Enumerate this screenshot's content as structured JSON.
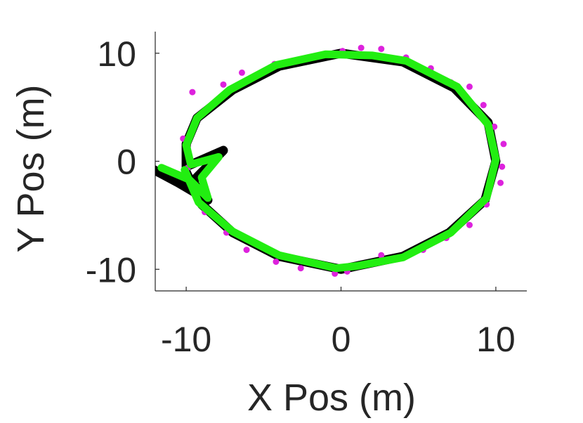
{
  "chart_data": {
    "type": "scatter",
    "title": "",
    "xlabel": "X Pos (m)",
    "ylabel": "Y Pos (m)",
    "xlim": [
      -12,
      12
    ],
    "ylim": [
      -12,
      12
    ],
    "xticks": [
      -10,
      0,
      10
    ],
    "yticks": [
      -10,
      0,
      10
    ],
    "xtick_labels": [
      "-10",
      "0",
      "10"
    ],
    "ytick_labels": [
      "-10",
      "0",
      "10"
    ],
    "grid": false,
    "legend": "none",
    "colors": {
      "truth": "#000000",
      "estimate": "#22ee11",
      "measurements": "#dd22dd",
      "axes": "#262626"
    },
    "series": [
      {
        "kind": "line",
        "color_key": "truth",
        "points": [
          [
            -12.2,
            -0.7
          ],
          [
            -10.5,
            -2.0
          ],
          [
            -8.6,
            -3.6
          ],
          [
            -9.6,
            -1.9
          ],
          [
            -7.6,
            1.0
          ],
          [
            -10.0,
            -0.5
          ],
          [
            -10.0,
            1.6
          ],
          [
            -9.3,
            4.0
          ],
          [
            -7.0,
            6.6
          ],
          [
            -4.0,
            8.8
          ],
          [
            0.0,
            10.0
          ],
          [
            4.0,
            9.2
          ],
          [
            7.3,
            6.8
          ],
          [
            9.5,
            3.6
          ],
          [
            10.0,
            0.0
          ],
          [
            9.3,
            -3.6
          ],
          [
            7.0,
            -6.6
          ],
          [
            4.0,
            -8.8
          ],
          [
            0.0,
            -10.0
          ],
          [
            -4.0,
            -8.8
          ],
          [
            -7.0,
            -6.6
          ],
          [
            -9.0,
            -4.0
          ],
          [
            -10.0,
            -1.0
          ]
        ]
      },
      {
        "kind": "line",
        "color_key": "estimate",
        "points": [
          [
            -11.6,
            -0.6
          ],
          [
            -9.8,
            -1.7
          ],
          [
            -8.6,
            -3.4
          ],
          [
            -9.0,
            -1.5
          ],
          [
            -7.9,
            0.4
          ],
          [
            -9.7,
            -0.3
          ],
          [
            -10.0,
            1.5
          ],
          [
            -9.3,
            4.0
          ],
          [
            -7.2,
            6.6
          ],
          [
            -4.2,
            8.9
          ],
          [
            -1.0,
            9.9
          ],
          [
            2.0,
            9.8
          ],
          [
            4.2,
            9.3
          ],
          [
            7.5,
            6.9
          ],
          [
            9.5,
            3.4
          ],
          [
            10.0,
            0.2
          ],
          [
            9.4,
            -3.4
          ],
          [
            7.1,
            -6.6
          ],
          [
            4.0,
            -8.9
          ],
          [
            1.0,
            -9.7
          ],
          [
            -0.3,
            -9.9
          ],
          [
            -4.0,
            -8.7
          ],
          [
            -7.0,
            -6.5
          ],
          [
            -9.2,
            -3.8
          ],
          [
            -10.1,
            -0.8
          ]
        ]
      },
      {
        "kind": "scatter",
        "color_key": "measurements",
        "points": [
          [
            -9.6,
            6.4
          ],
          [
            -10.2,
            2.1
          ],
          [
            -9.9,
            -0.6
          ],
          [
            -9.0,
            -2.6
          ],
          [
            -8.2,
            5.4
          ],
          [
            -7.6,
            7.1
          ],
          [
            -6.4,
            8.2
          ],
          [
            -4.3,
            9.0
          ],
          [
            -2.1,
            9.6
          ],
          [
            0.1,
            10.2
          ],
          [
            1.3,
            10.5
          ],
          [
            2.6,
            10.4
          ],
          [
            4.2,
            9.6
          ],
          [
            5.8,
            8.6
          ],
          [
            7.1,
            7.3
          ],
          [
            8.3,
            6.9
          ],
          [
            9.2,
            5.2
          ],
          [
            9.9,
            3.2
          ],
          [
            10.5,
            1.6
          ],
          [
            10.4,
            -0.5
          ],
          [
            10.3,
            -2.0
          ],
          [
            9.4,
            -4.0
          ],
          [
            8.3,
            -5.9
          ],
          [
            6.8,
            -7.1
          ],
          [
            5.3,
            -8.2
          ],
          [
            2.6,
            -8.7
          ],
          [
            0.4,
            -10.2
          ],
          [
            -0.4,
            -10.4
          ],
          [
            -2.6,
            -9.9
          ],
          [
            -4.2,
            -9.3
          ],
          [
            -6.1,
            -8.2
          ],
          [
            -7.4,
            -6.6
          ],
          [
            -8.8,
            -4.7
          ]
        ]
      }
    ]
  }
}
